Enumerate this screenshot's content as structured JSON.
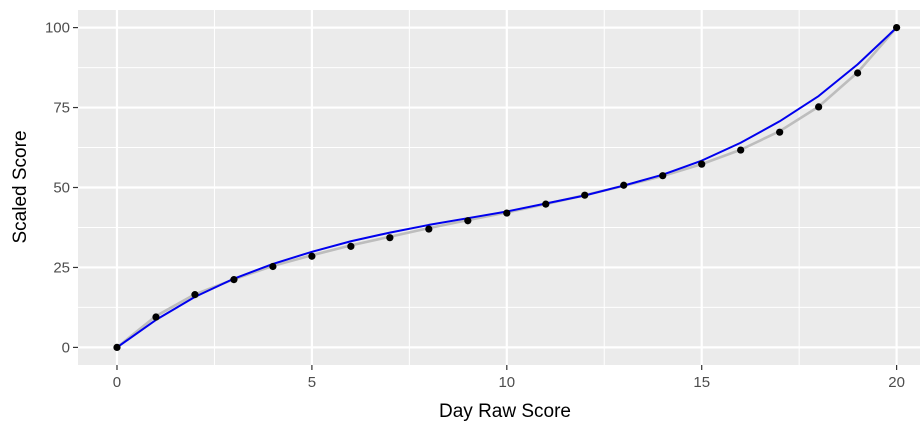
{
  "chart_data": {
    "type": "scatter",
    "xlabel": "Day Raw Score",
    "ylabel": "Scaled Score",
    "xlim": [
      -1,
      20.6
    ],
    "ylim": [
      -5.5,
      105.5
    ],
    "x_ticks": [
      0,
      5,
      10,
      15,
      20
    ],
    "y_ticks": [
      0,
      25,
      50,
      75,
      100
    ],
    "grid": true,
    "legend": "none",
    "colors": {
      "panel": "#ebebeb",
      "grid": "#ffffff",
      "points": "#000000",
      "gray_curve": "#bdbdbd",
      "blue_curve": "#0000ee"
    },
    "series": [
      {
        "kind": "points",
        "x": [
          0,
          1,
          2,
          3,
          4,
          5,
          6,
          7,
          8,
          9,
          10,
          11,
          12,
          13,
          14,
          15,
          16,
          17,
          18,
          19,
          20
        ],
        "y": [
          0,
          9.5,
          16.5,
          21.2,
          25.3,
          28.5,
          31.6,
          34.3,
          37.0,
          39.6,
          42.0,
          44.8,
          47.6,
          50.7,
          53.7,
          57.3,
          61.7,
          67.3,
          75.2,
          85.8,
          100
        ]
      },
      {
        "kind": "line",
        "color": "#bdbdbd",
        "x": [
          0,
          1,
          2,
          3,
          4,
          5,
          6,
          7,
          8,
          9,
          10,
          11,
          12,
          13,
          14,
          15,
          16,
          17,
          18,
          19,
          20
        ],
        "y": [
          0,
          9.8,
          16.6,
          21.3,
          25.5,
          28.8,
          31.9,
          34.6,
          37.3,
          39.8,
          42.2,
          44.8,
          47.6,
          50.5,
          53.6,
          57.3,
          61.8,
          67.6,
          75.3,
          86.0,
          100
        ]
      },
      {
        "kind": "line",
        "color": "#0000ee",
        "x": [
          0,
          1,
          2,
          3,
          4,
          5,
          6,
          7,
          8,
          9,
          10,
          11,
          12,
          13,
          14,
          15,
          16,
          17,
          18,
          19,
          20
        ],
        "y": [
          0,
          8.6,
          15.8,
          21.5,
          26.1,
          29.9,
          33.2,
          35.9,
          38.3,
          40.4,
          42.5,
          45.0,
          47.5,
          50.6,
          54.0,
          58.4,
          64.0,
          70.7,
          78.6,
          88.5,
          100
        ]
      }
    ]
  }
}
